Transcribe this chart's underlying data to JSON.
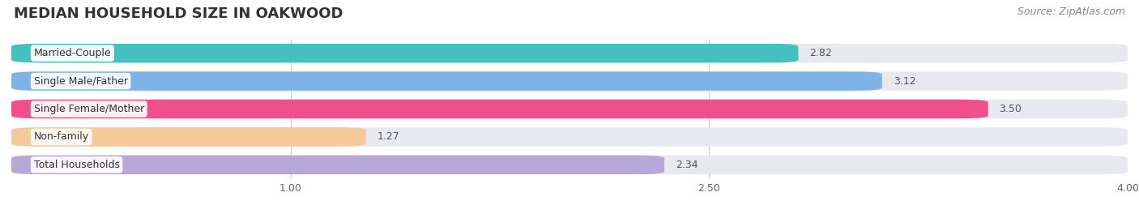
{
  "title": "MEDIAN HOUSEHOLD SIZE IN OAKWOOD",
  "source": "Source: ZipAtlas.com",
  "categories": [
    "Married-Couple",
    "Single Male/Father",
    "Single Female/Mother",
    "Non-family",
    "Total Households"
  ],
  "values": [
    2.82,
    3.12,
    3.5,
    1.27,
    2.34
  ],
  "bar_colors": [
    "#45BFBF",
    "#7EB3E8",
    "#F0508A",
    "#F5C99A",
    "#B8A8D8"
  ],
  "background_color": "#ffffff",
  "bar_bg_color": "#e8e8f0",
  "xlim_min": 0,
  "xlim_max": 4.0,
  "xticks": [
    1.0,
    2.5,
    4.0
  ],
  "title_fontsize": 13,
  "source_fontsize": 9,
  "label_fontsize": 9,
  "value_fontsize": 9
}
